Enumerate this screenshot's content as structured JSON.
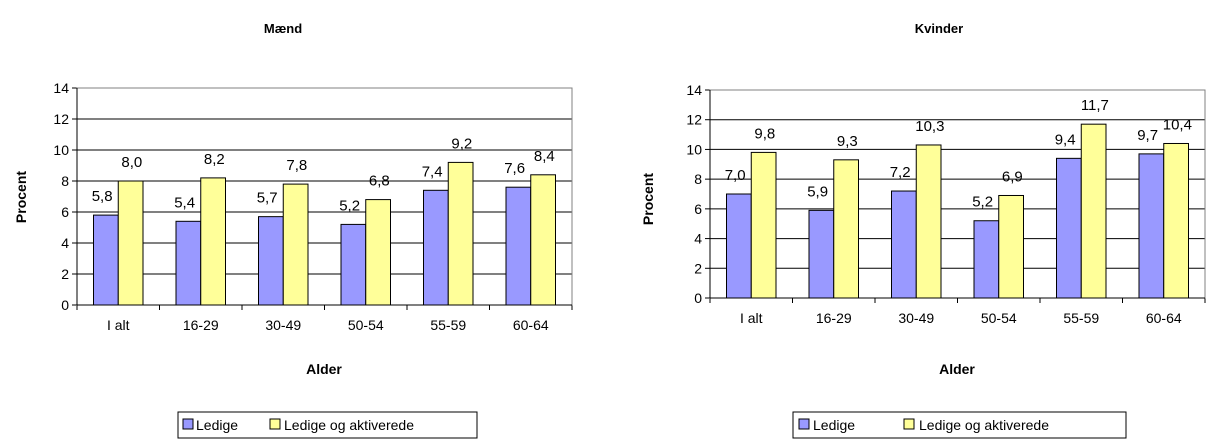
{
  "colors": {
    "ledige": "#9999ff",
    "aktiverede": "#ffff99",
    "grid": "#000000"
  },
  "legend": {
    "ledige": "Ledige",
    "aktiverede": "Ledige og aktiverede"
  },
  "chart_data": [
    {
      "type": "bar",
      "title": "Mænd",
      "xlabel": "Alder",
      "ylabel": "Procent",
      "ylim": [
        0,
        14
      ],
      "yticks": [
        "0",
        "2",
        "4",
        "6",
        "8",
        "10",
        "12",
        "14"
      ],
      "categories": [
        "I alt",
        "16-29",
        "30-49",
        "50-54",
        "55-59",
        "60-64"
      ],
      "grid": true,
      "legend_position": "bottom",
      "series": [
        {
          "name": "Ledige",
          "values": [
            5.8,
            5.4,
            5.7,
            5.2,
            7.4,
            7.6
          ],
          "labels": [
            "5,8",
            "5,4",
            "5,7",
            "5,2",
            "7,4",
            "7,6"
          ]
        },
        {
          "name": "Ledige og aktiverede",
          "values": [
            8.0,
            8.2,
            7.8,
            6.8,
            9.2,
            8.4
          ],
          "labels": [
            "8,0",
            "8,2",
            "7,8",
            "6,8",
            "9,2",
            "8,4"
          ]
        }
      ]
    },
    {
      "type": "bar",
      "title": "Kvinder",
      "xlabel": "Alder",
      "ylabel": "Procent",
      "ylim": [
        0,
        14
      ],
      "yticks": [
        "0",
        "2",
        "4",
        "6",
        "8",
        "10",
        "12",
        "14"
      ],
      "categories": [
        "I alt",
        "16-29",
        "30-49",
        "50-54",
        "55-59",
        "60-64"
      ],
      "grid": true,
      "legend_position": "bottom",
      "series": [
        {
          "name": "Ledige",
          "values": [
            7.0,
            5.9,
            7.2,
            5.2,
            9.4,
            9.7
          ],
          "labels": [
            "7,0",
            "5,9",
            "7,2",
            "5,2",
            "9,4",
            "9,7"
          ]
        },
        {
          "name": "Ledige og aktiverede",
          "values": [
            9.8,
            9.3,
            10.3,
            6.9,
            11.7,
            10.4
          ],
          "labels": [
            "9,8",
            "9,3",
            "10,3",
            "6,9",
            "11,7",
            "10,4"
          ]
        }
      ]
    }
  ]
}
